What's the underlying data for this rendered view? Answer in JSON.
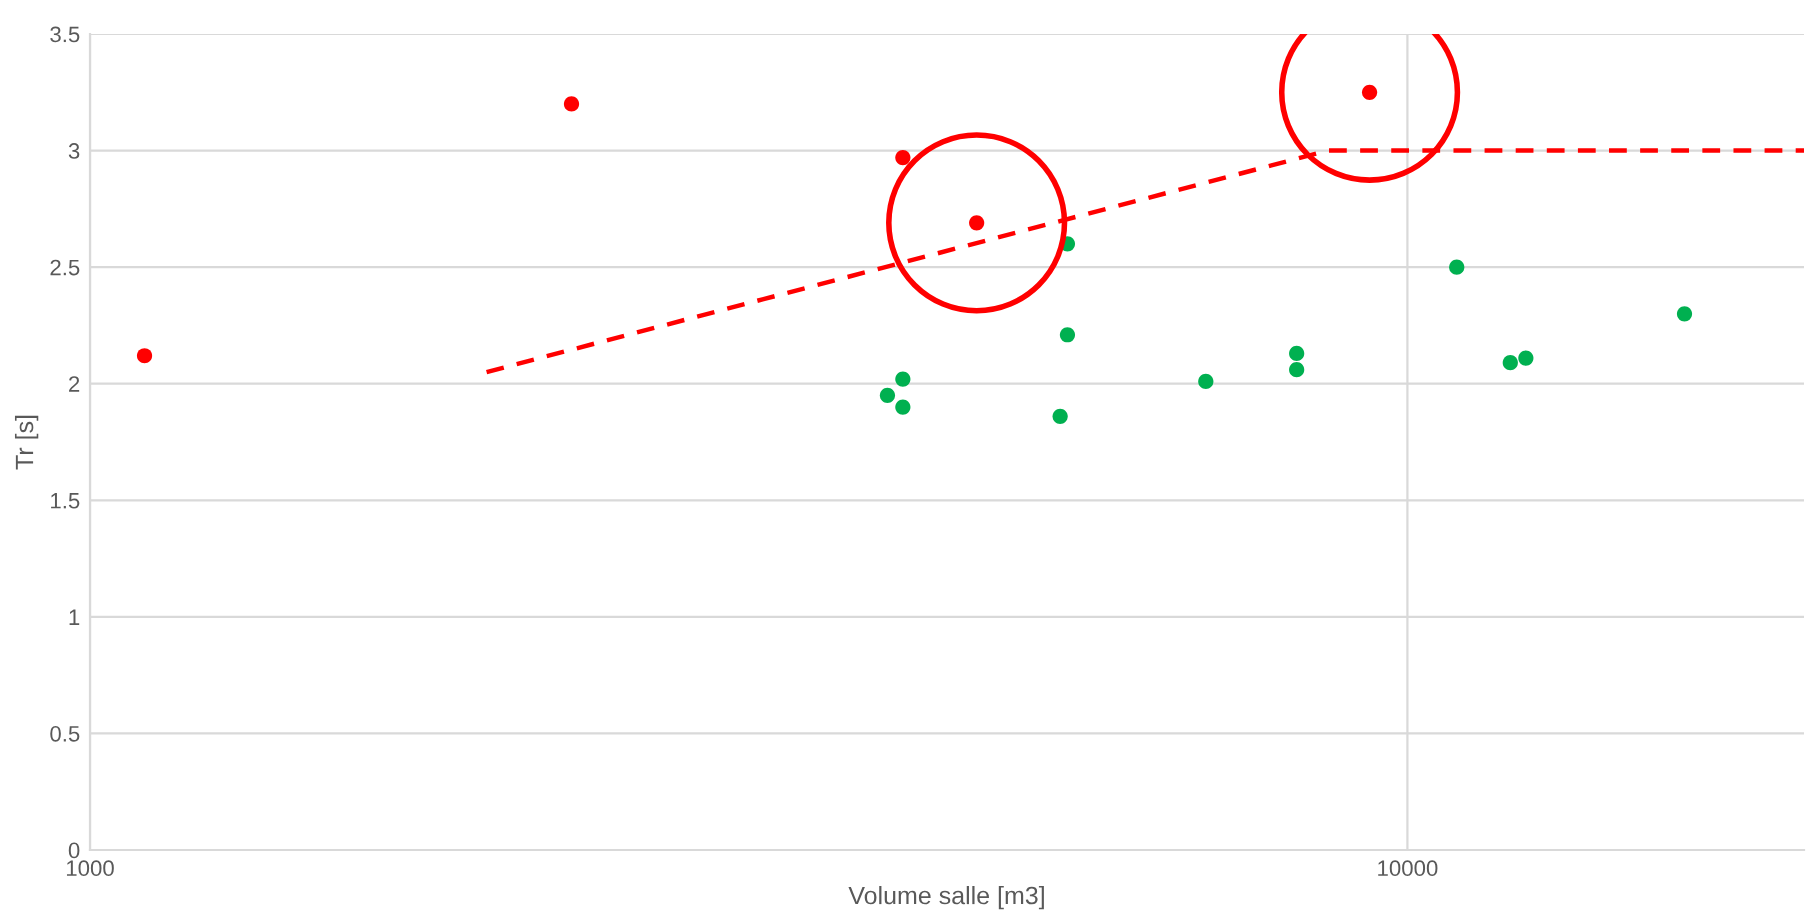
{
  "chart_data": {
    "type": "scatter",
    "xlabel": "Volume salle [m3]",
    "ylabel": "Tr [s]",
    "log": "x",
    "xlim": [
      1000,
      20000
    ],
    "xticks": [
      1000,
      10000
    ],
    "ylim": [
      0,
      3.5
    ],
    "yticks": [
      0,
      {
        "value": 0.5,
        "label": "0.5"
      },
      1,
      {
        "value": 1.5,
        "label": "1.5"
      },
      2,
      {
        "value": 2.5,
        "label": "2.5"
      },
      3,
      {
        "value": 3.5,
        "label": "3.5"
      }
    ],
    "grid": true,
    "series": [
      {
        "marker": "circle",
        "color": "#ff0000",
        "x": [
          1100,
          2320,
          4140,
          4710,
          9360
        ],
        "values": [
          2.12,
          3.2,
          2.97,
          2.69,
          3.25
        ]
      },
      {
        "marker": "circle",
        "color": "#00b050",
        "x": [
          4030,
          4140,
          4140,
          5520,
          5520,
          5450,
          7030,
          8240,
          8240,
          10900,
          11970,
          12300,
          16230
        ],
        "values": [
          1.95,
          2.02,
          1.9,
          2.6,
          2.21,
          1.86,
          2.01,
          2.13,
          2.06,
          2.5,
          2.09,
          2.11,
          2.3
        ]
      },
      {
        "type": "line",
        "color": "#ff0000",
        "line_style": "dashed",
        "marker": "none",
        "x": [
          2000,
          8700,
          20000
        ],
        "values": [
          2.05,
          3,
          3
        ]
      },
      {
        "type": "bubble",
        "marker": "circle",
        "color": "#ff0000",
        "x": [
          4710,
          9360
        ],
        "values": [
          2.69,
          3.25
        ],
        "sizes": [
          1,
          1
        ]
      }
    ]
  }
}
